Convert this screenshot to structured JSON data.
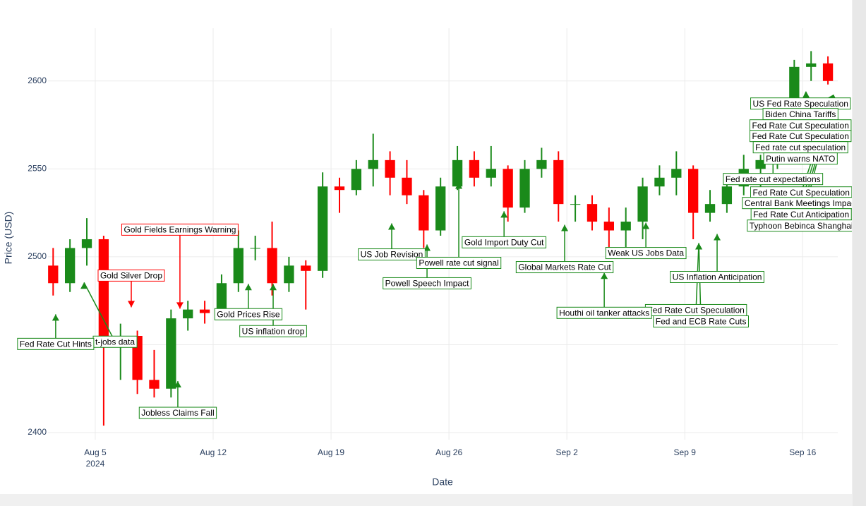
{
  "chart_data": {
    "type": "candlestick",
    "x_label": "Date",
    "y_label": "Price (USD)",
    "xlim": [
      "2024-08-02 04:40",
      "2024-09-18 02:00"
    ],
    "ylim": [
      2396,
      2630
    ],
    "yticks": [
      2400,
      2450,
      2500,
      2550,
      2600
    ],
    "xticks": [
      {
        "value": "2024-08-05 00:00",
        "label": "Aug 5"
      },
      {
        "value": "2024-08-12 00:00",
        "label": "Aug 12"
      },
      {
        "value": "2024-08-19 00:00",
        "label": "Aug 19"
      },
      {
        "value": "2024-08-26 00:00",
        "label": "Aug 26"
      },
      {
        "value": "2024-09-02 00:00",
        "label": "Sep 2"
      },
      {
        "value": "2024-09-09 00:00",
        "label": "Sep 9"
      },
      {
        "value": "2024-09-16 00:00",
        "label": "Sep 16"
      }
    ],
    "xtick_year": "2024",
    "grid": true,
    "increasing_color": "#1a8a1a",
    "decreasing_color": "#ff0000",
    "x": [
      "2024-08-02 12:00",
      "2024-08-03 12:00",
      "2024-08-04 12:00",
      "2024-08-05 12:00",
      "2024-08-06 12:00",
      "2024-08-07 12:00",
      "2024-08-08 12:00",
      "2024-08-09 12:00",
      "2024-08-10 12:00",
      "2024-08-11 12:00",
      "2024-08-12 12:00",
      "2024-08-13 12:00",
      "2024-08-14 12:00",
      "2024-08-15 12:00",
      "2024-08-16 12:00",
      "2024-08-17 12:00",
      "2024-08-18 12:00",
      "2024-08-19 12:00",
      "2024-08-20 12:00",
      "2024-08-21 12:00",
      "2024-08-22 12:00",
      "2024-08-23 12:00",
      "2024-08-24 12:00",
      "2024-08-25 12:00",
      "2024-08-26 12:00",
      "2024-08-27 12:00",
      "2024-08-28 12:00",
      "2024-08-29 12:00",
      "2024-08-30 12:00",
      "2024-08-31 12:00",
      "2024-09-01 12:00",
      "2024-09-02 12:00",
      "2024-09-03 12:00",
      "2024-09-04 12:00",
      "2024-09-05 12:00",
      "2024-09-06 12:00",
      "2024-09-07 12:00",
      "2024-09-08 12:00",
      "2024-09-09 12:00",
      "2024-09-10 12:00",
      "2024-09-11 12:00",
      "2024-09-12 12:00",
      "2024-09-13 12:00",
      "2024-09-14 12:00",
      "2024-09-15 12:00",
      "2024-09-16 12:00",
      "2024-09-17 12:00"
    ],
    "open": [
      2495,
      2485,
      2505,
      2510,
      2450,
      2455,
      2430,
      2425,
      2465,
      2470,
      2468,
      2485,
      2505,
      2505,
      2485,
      2495,
      2492,
      2540,
      2538,
      2550,
      2555,
      2545,
      2535,
      2515,
      2540,
      2555,
      2545,
      2550,
      2528,
      2550,
      2555,
      2530,
      2530,
      2520,
      2515,
      2520,
      2540,
      2545,
      2550,
      2525,
      2530,
      2540,
      2550,
      2555,
      2580,
      2608,
      2610
    ],
    "high": [
      2505,
      2510,
      2522,
      2512,
      2462,
      2458,
      2447,
      2470,
      2475,
      2475,
      2490,
      2515,
      2512,
      2520,
      2500,
      2498,
      2548,
      2545,
      2555,
      2570,
      2560,
      2555,
      2538,
      2545,
      2563,
      2560,
      2563,
      2552,
      2555,
      2562,
      2560,
      2535,
      2535,
      2528,
      2528,
      2545,
      2552,
      2560,
      2552,
      2538,
      2545,
      2558,
      2558,
      2585,
      2612,
      2617,
      2614
    ],
    "low": [
      2478,
      2480,
      2495,
      2404,
      2430,
      2422,
      2420,
      2420,
      2458,
      2462,
      2465,
      2480,
      2498,
      2478,
      2480,
      2470,
      2488,
      2525,
      2535,
      2540,
      2535,
      2530,
      2505,
      2512,
      2538,
      2540,
      2540,
      2520,
      2525,
      2545,
      2520,
      2520,
      2515,
      2505,
      2505,
      2510,
      2535,
      2535,
      2510,
      2520,
      2525,
      2535,
      2540,
      2550,
      2578,
      2600,
      2598
    ],
    "close": [
      2485,
      2505,
      2510,
      2450,
      2455,
      2430,
      2425,
      2465,
      2470,
      2468,
      2485,
      2505,
      2505,
      2485,
      2495,
      2492,
      2540,
      2538,
      2550,
      2555,
      2545,
      2535,
      2515,
      2540,
      2555,
      2545,
      2550,
      2528,
      2550,
      2555,
      2530,
      2530,
      2520,
      2515,
      2520,
      2540,
      2545,
      2550,
      2525,
      2530,
      2540,
      2550,
      2555,
      2580,
      2608,
      2610,
      2600
    ],
    "annotations": [
      {
        "text": "t-jobs data",
        "x": "2024-08-04 08:00",
        "y": 2485.4,
        "color": "#1a8a1a"
      },
      {
        "text": "Fed Rate Cut Hints",
        "x": "2024-08-02 15:36",
        "y": 2467.3,
        "color": "#1a8a1a"
      },
      {
        "text": "Gold Silver Drop",
        "x": "2024-08-07 03:20",
        "y": 2471.3,
        "color": "#ff0000"
      },
      {
        "text": "Gold Fields Earnings Warning",
        "x": "2024-08-10 00:40",
        "y": 2470.5,
        "color": "#ff0000"
      },
      {
        "text": "Jobless Claims Fall",
        "x": "2024-08-09 21:40",
        "y": 2429.3,
        "color": "#1a8a1a"
      },
      {
        "text": "Gold Prices Rise",
        "x": "2024-08-14 02:10",
        "y": 2484.6,
        "color": "#1a8a1a"
      },
      {
        "text": "US inflation drop",
        "x": "2024-08-15 13:30",
        "y": 2484.6,
        "color": "#1a8a1a"
      },
      {
        "text": "US Job Revision",
        "x": "2024-08-22 14:25",
        "y": 2519.0,
        "color": "#1a8a1a"
      },
      {
        "text": "Powell rate cut signal",
        "x": "2024-08-26 14:00",
        "y": 2542.3,
        "color": "#1a8a1a"
      },
      {
        "text": "Powell Speech Impact",
        "x": "2024-08-24 16:45",
        "y": 2507.0,
        "color": "#1a8a1a"
      },
      {
        "text": "Gold Import Duty Cut",
        "x": "2024-08-29 06:30",
        "y": 2525.9,
        "color": "#1a8a1a"
      },
      {
        "text": "Global Markets Rate Cut",
        "x": "2024-09-01 20:50",
        "y": 2518.2,
        "color": "#1a8a1a"
      },
      {
        "text": "Fed Rate Cut Speculation",
        "x": "2024-09-09 20:00",
        "y": 2507.8,
        "color": "#1a8a1a"
      },
      {
        "text": "Fed and ECB Rate Cuts",
        "x": "2024-09-09 20:00",
        "y": 2507.8,
        "color": "#1a8a1a"
      },
      {
        "text": "Houthi oil tanker attacks",
        "x": "2024-09-04 05:15",
        "y": 2491.0,
        "color": "#1a8a1a"
      },
      {
        "text": "Weak US Jobs Data",
        "x": "2024-09-06 16:35",
        "y": 2519.4,
        "color": "#1a8a1a"
      },
      {
        "text": "US Inflation Anticipation",
        "x": "2024-09-10 22:05",
        "y": 2513.0,
        "color": "#1a8a1a"
      },
      {
        "text": "Fed rate cut expectations",
        "x": "2024-09-14 05:45",
        "y": 2560.3,
        "color": "#1a8a1a"
      },
      {
        "text": "US Fed Rate Speculation",
        "x": "2024-09-16 05:00",
        "y": 2594.0,
        "color": "#1a8a1a"
      },
      {
        "text": "Biden China Tariffs",
        "x": "2024-09-17 20:10",
        "y": 2592.0,
        "color": "#1a8a1a"
      },
      {
        "text": "Fed Rate Cut Speculation",
        "x": "2024-09-17 20:10",
        "y": 2592.0,
        "color": "#1a8a1a"
      },
      {
        "text": "Fed Rate Cut Speculation",
        "x": "2024-09-17 20:10",
        "y": 2592.0,
        "color": "#1a8a1a"
      },
      {
        "text": "Fed rate cut speculation",
        "x": "2024-09-17 20:10",
        "y": 2592.0,
        "color": "#1a8a1a"
      },
      {
        "text": "Putin warns NATO",
        "x": "2024-09-17 20:10",
        "y": 2592.0,
        "color": "#1a8a1a"
      },
      {
        "text": "Fed Rate Cut Speculation",
        "x": "2024-09-17 20:10",
        "y": 2592.0,
        "color": "#1a8a1a"
      },
      {
        "text": "Central Bank Meetings Impact",
        "x": "2024-09-17 20:10",
        "y": 2592.0,
        "color": "#1a8a1a"
      },
      {
        "text": "Fed Rate Cut Anticipation",
        "x": "2024-09-17 20:10",
        "y": 2592.0,
        "color": "#1a8a1a"
      },
      {
        "text": "Typhoon Bebinca Shanghai",
        "x": "2024-09-17 20:10",
        "y": 2592.0,
        "color": "#1a8a1a"
      }
    ]
  }
}
